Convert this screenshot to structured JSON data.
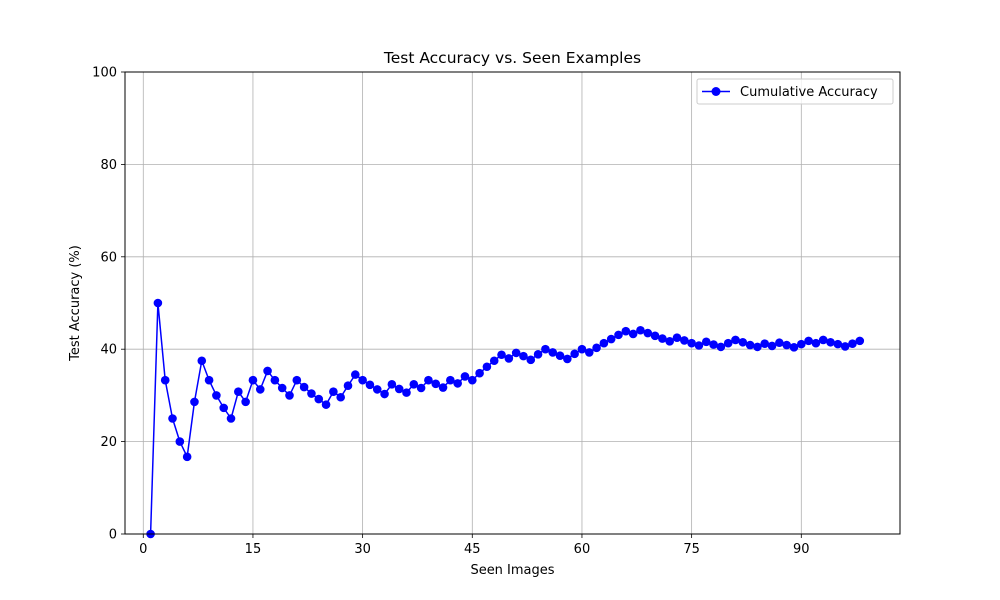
{
  "chart_data": {
    "type": "line",
    "title": "Test Accuracy vs. Seen Examples",
    "xlabel": "Seen Images",
    "ylabel": "Test Accuracy (%)",
    "xlim": [
      -2.5,
      103.5
    ],
    "ylim": [
      0,
      100
    ],
    "xticks": [
      0,
      15,
      30,
      45,
      60,
      75,
      90
    ],
    "yticks": [
      0,
      20,
      40,
      60,
      80,
      100
    ],
    "grid": true,
    "legend_position": "top-right",
    "series": [
      {
        "name": "Cumulative Accuracy",
        "color": "#0000ff",
        "marker": "circle",
        "x": [
          1,
          2,
          3,
          4,
          5,
          6,
          7,
          8,
          9,
          10,
          11,
          12,
          13,
          14,
          15,
          16,
          17,
          18,
          19,
          20,
          21,
          22,
          23,
          24,
          25,
          26,
          27,
          28,
          29,
          30,
          31,
          32,
          33,
          34,
          35,
          36,
          37,
          38,
          39,
          40,
          41,
          42,
          43,
          44,
          45,
          46,
          47,
          48,
          49,
          50,
          51,
          52,
          53,
          54,
          55,
          56,
          57,
          58,
          59,
          60,
          61,
          62,
          63,
          64,
          65,
          66,
          67,
          68,
          69,
          70,
          71,
          72,
          73,
          74,
          75,
          76,
          77,
          78,
          79,
          80,
          81,
          82,
          83,
          84,
          85,
          86,
          87,
          88,
          89,
          90,
          91,
          92,
          93,
          94,
          95,
          96,
          97,
          98
        ],
        "y": [
          0,
          50,
          33.3,
          25,
          20,
          16.7,
          28.6,
          37.5,
          33.3,
          30,
          27.3,
          25,
          30.8,
          28.6,
          33.3,
          31.3,
          35.3,
          33.3,
          31.6,
          30,
          33.3,
          31.8,
          30.4,
          29.2,
          28,
          30.8,
          29.6,
          32.1,
          34.5,
          33.3,
          32.3,
          31.3,
          30.3,
          32.4,
          31.4,
          30.6,
          32.4,
          31.6,
          33.3,
          32.5,
          31.7,
          33.3,
          32.6,
          34.1,
          33.3,
          34.8,
          36.2,
          37.5,
          38.8,
          38,
          39.2,
          38.5,
          37.7,
          38.9,
          40,
          39.3,
          38.6,
          37.9,
          39,
          40,
          39.3,
          40.3,
          41.3,
          42.2,
          43.1,
          43.9,
          43.3,
          44.1,
          43.5,
          42.9,
          42.3,
          41.7,
          42.5,
          41.9,
          41.3,
          40.8,
          41.6,
          41,
          40.5,
          41.3,
          42,
          41.5,
          40.9,
          40.5,
          41.2,
          40.7,
          41.4,
          40.9,
          40.4,
          41.1,
          41.8,
          41.3,
          42,
          41.5,
          41.1,
          40.6,
          41.2,
          41.8
        ]
      }
    ]
  }
}
